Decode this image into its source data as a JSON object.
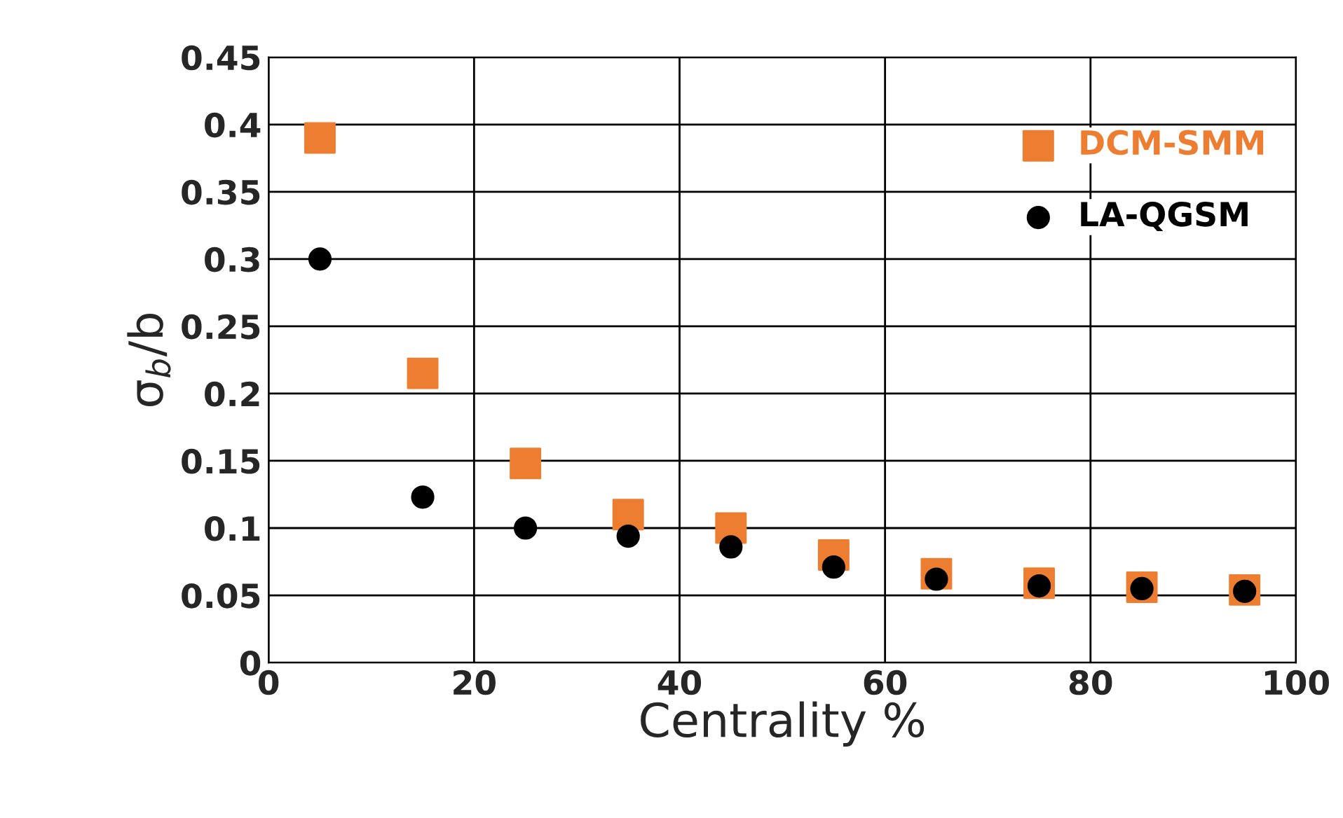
{
  "chart_data": {
    "type": "scatter",
    "xlabel": "Centrality %",
    "ylabel": "σ$_{b}$/b",
    "x": [
      5,
      15,
      25,
      35,
      45,
      55,
      65,
      75,
      85,
      95
    ],
    "series": [
      {
        "name": "DCM-SMM",
        "color": "#ed7d31",
        "marker": "square",
        "values": [
          0.39,
          0.215,
          0.148,
          0.11,
          0.1,
          0.08,
          0.066,
          0.059,
          0.056,
          0.054
        ]
      },
      {
        "name": "LA-QGSM",
        "color": "#000000",
        "marker": "circle",
        "values": [
          0.3,
          0.123,
          0.1,
          0.094,
          0.086,
          0.071,
          0.062,
          0.057,
          0.055,
          0.053
        ]
      }
    ],
    "xlim": [
      0,
      100
    ],
    "xticks": [
      0,
      20,
      40,
      60,
      80,
      100
    ],
    "ylim": [
      0,
      0.45
    ],
    "yticks": [
      0,
      0.05,
      0.1,
      0.15,
      0.2,
      0.25,
      0.3,
      0.35,
      0.4,
      0.45
    ],
    "grid": true,
    "legend": "top right"
  }
}
